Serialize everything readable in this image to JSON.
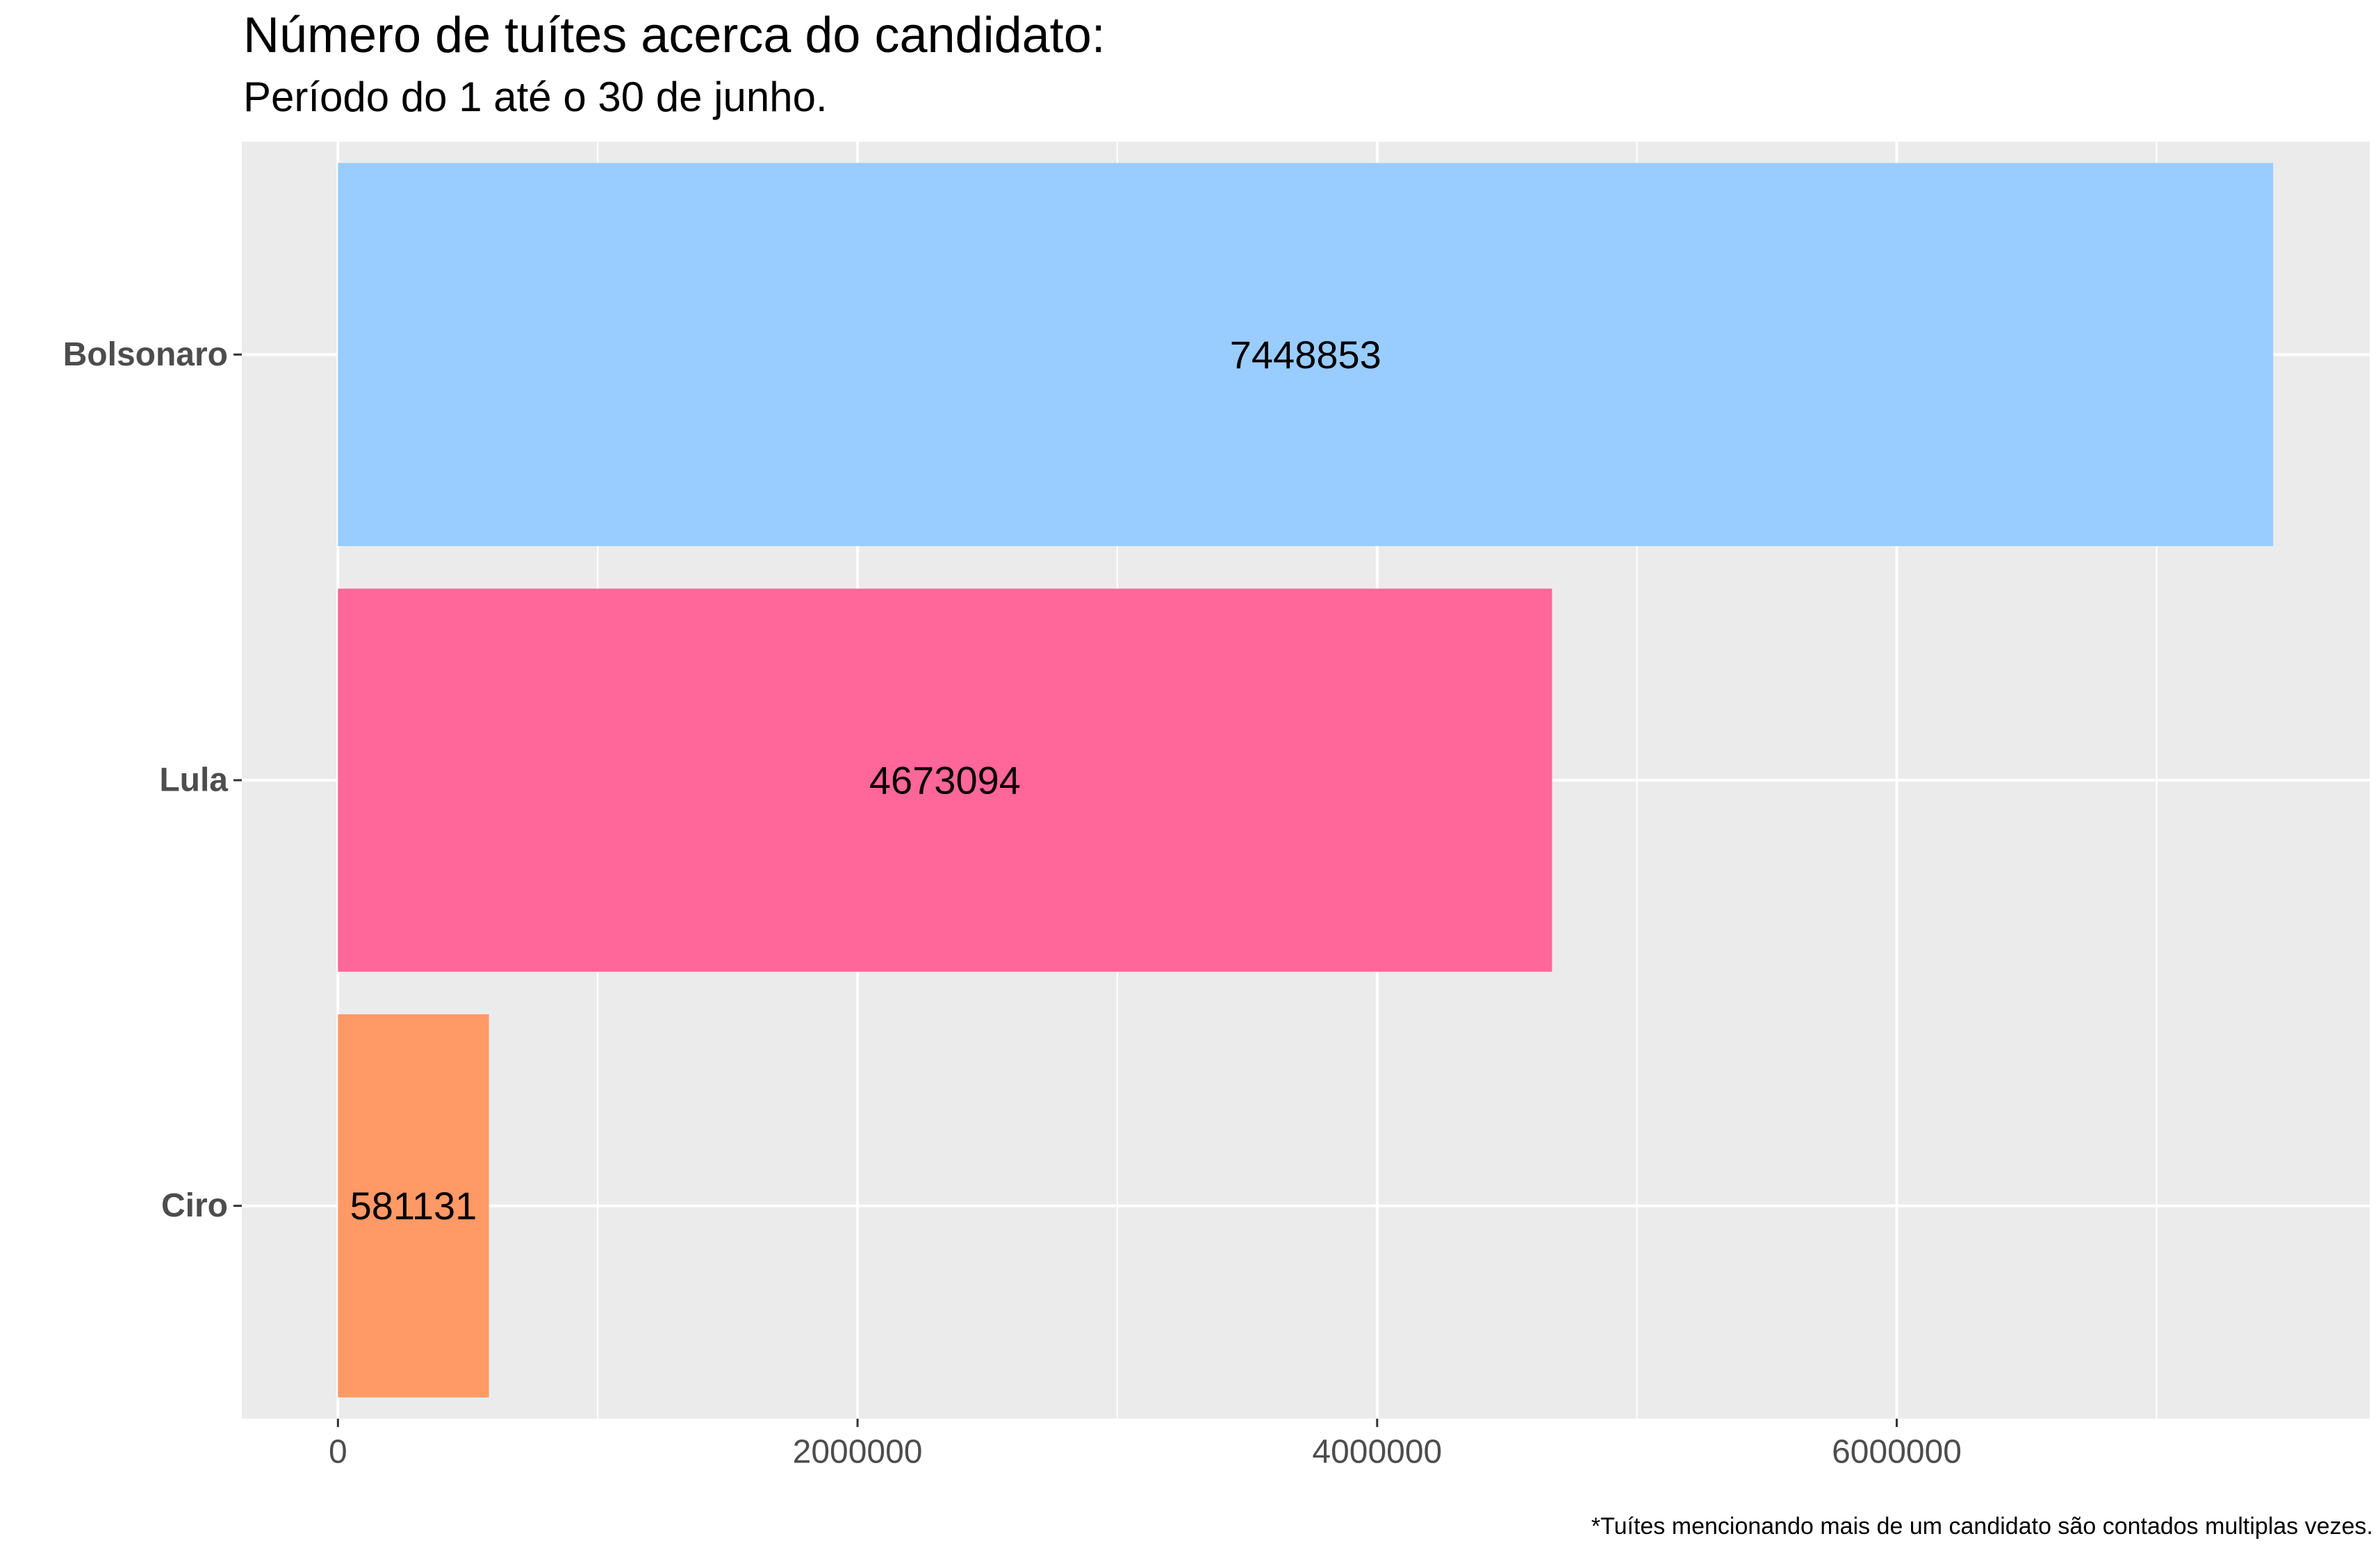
{
  "chart_data": {
    "type": "bar",
    "orientation": "horizontal",
    "title": "Número de tuítes acerca do candidato:",
    "subtitle": "Período do 1 até o 30 de junho.",
    "caption": "*Tuítes mencionando mais de um candidato são contados multiplas vezes.",
    "xlabel": "",
    "ylabel": "",
    "categories": [
      "Bolsonaro",
      "Lula",
      "Ciro"
    ],
    "values": [
      7448853,
      4673094,
      581131
    ],
    "data_labels": [
      "7448853",
      "4673094",
      "581131"
    ],
    "colors": [
      "#99CCFF",
      "#FF6699",
      "#FF9966"
    ],
    "xlim": [
      -370000,
      7820000
    ],
    "x_ticks": [
      0,
      2000000,
      4000000,
      6000000
    ],
    "x_tick_labels": [
      "0",
      "2000000",
      "4000000",
      "6000000"
    ],
    "x_minor_ticks": [
      1000000,
      3000000,
      5000000,
      7000000
    ],
    "grid": true,
    "legend": "none",
    "background": "#EBEBEB",
    "grid_color": "#FFFFFF"
  }
}
